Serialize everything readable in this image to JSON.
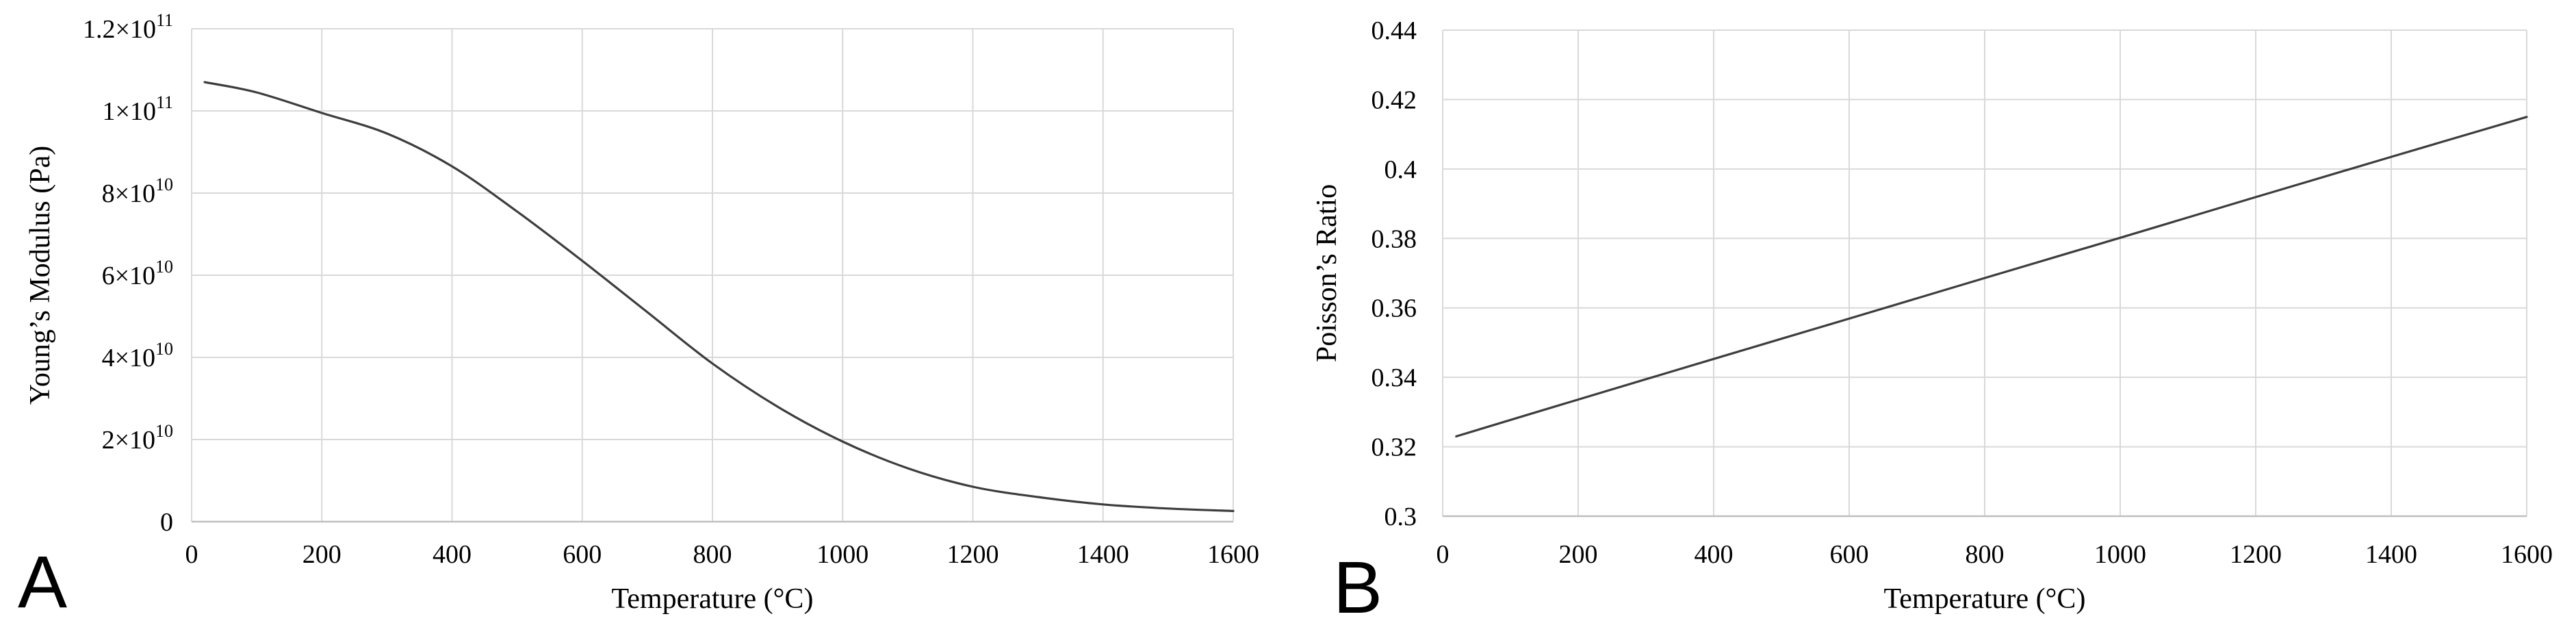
{
  "figure": {
    "background": "#ffffff",
    "text_color": "#000000",
    "line_color": "#3d3d3d",
    "gridline_color": "#d9d9d9",
    "axis_line_color": "#bfbfbf"
  },
  "panels": [
    {
      "letter": "A"
    },
    {
      "letter": "B"
    }
  ],
  "chart_data": [
    {
      "type": "line",
      "panel": "A",
      "title": "",
      "xlabel": "Temperature (°C)",
      "ylabel": "Young’s Modulus (Pa)",
      "xlim": [
        0,
        1600
      ],
      "ylim": [
        0,
        120000000000.0
      ],
      "grid": true,
      "legend": "none",
      "line_color": "#3d3d3d",
      "x_ticks": [
        0,
        200,
        400,
        600,
        800,
        1000,
        1200,
        1400,
        1600
      ],
      "x_tick_labels": [
        "0",
        "200",
        "400",
        "600",
        "800",
        "1000",
        "1200",
        "1400",
        "1600"
      ],
      "y_ticks": [
        0,
        20000000000.0,
        40000000000.0,
        60000000000.0,
        80000000000.0,
        100000000000.0,
        120000000000.0
      ],
      "y_tick_labels": [
        "0",
        "2×10^10",
        "4×10^10",
        "6×10^10",
        "8×10^10",
        "1×10^11",
        "1.2×10^11"
      ],
      "x": [
        20,
        100,
        200,
        300,
        400,
        500,
        600,
        700,
        800,
        900,
        1000,
        1100,
        1200,
        1300,
        1400,
        1500,
        1600
      ],
      "y": [
        107000000000.0,
        104500000000.0,
        99500000000.0,
        94500000000.0,
        86500000000.0,
        75500000000.0,
        63500000000.0,
        51000000000.0,
        38500000000.0,
        28000000000.0,
        19500000000.0,
        13000000000.0,
        8500000000.0,
        6000000000.0,
        4200000000.0,
        3200000000.0,
        2600000000.0
      ]
    },
    {
      "type": "line",
      "panel": "B",
      "title": "",
      "xlabel": "Temperature (°C)",
      "ylabel": "Poisson’s Ratio",
      "xlim": [
        0,
        1600
      ],
      "ylim": [
        0.3,
        0.44
      ],
      "grid": true,
      "legend": "none",
      "line_color": "#3d3d3d",
      "x_ticks": [
        0,
        200,
        400,
        600,
        800,
        1000,
        1200,
        1400,
        1600
      ],
      "x_tick_labels": [
        "0",
        "200",
        "400",
        "600",
        "800",
        "1000",
        "1200",
        "1400",
        "1600"
      ],
      "y_ticks": [
        0.3,
        0.32,
        0.34,
        0.36,
        0.38,
        0.4,
        0.42,
        0.44
      ],
      "y_tick_labels": [
        "0.3",
        "0.32",
        "0.34",
        "0.36",
        "0.38",
        "0.4",
        "0.42",
        "0.44"
      ],
      "x": [
        20,
        200,
        400,
        600,
        800,
        1000,
        1200,
        1400,
        1600
      ],
      "y": [
        0.323,
        0.3336,
        0.3453,
        0.3569,
        0.3686,
        0.3802,
        0.3919,
        0.4035,
        0.415
      ]
    }
  ]
}
